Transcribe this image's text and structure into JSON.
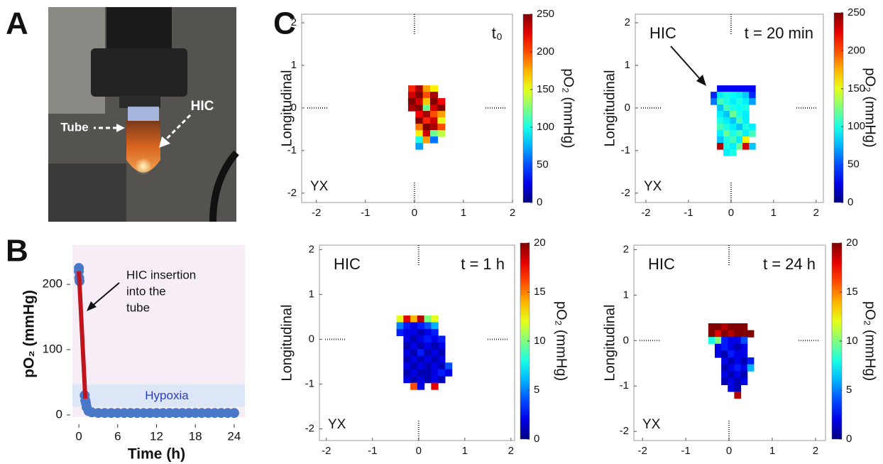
{
  "panel_labels": [
    "A",
    "B",
    "C"
  ],
  "photo": {
    "labels": [
      "Tube",
      "HIC"
    ]
  },
  "chart_data": [
    {
      "type": "line",
      "xlabel": "Time (h)",
      "ylabel": "pO₂ (mmHg)",
      "annotations": [
        "HIC insertion",
        "into the",
        "tube",
        "Hypoxia"
      ],
      "xlim": [
        -1,
        25
      ],
      "ylim": [
        -12,
        260
      ],
      "xticks": [
        0,
        6,
        12,
        18,
        24
      ],
      "yticks": [
        0,
        100,
        200
      ],
      "series": [
        {
          "mode": "markers",
          "color": "#4a78c9",
          "x": [
            0,
            0,
            0.05,
            0.1,
            0.9,
            1.0,
            1.1,
            1.2,
            1.5,
            2,
            3,
            4,
            5,
            6,
            7,
            8,
            9,
            10,
            11,
            12,
            13,
            14,
            15,
            16,
            17,
            18,
            19,
            20,
            21,
            22,
            23,
            24
          ],
          "values": [
            225,
            220,
            210,
            205,
            30,
            22,
            18,
            12,
            6,
            4,
            3,
            3,
            3,
            3,
            3,
            3,
            3,
            3,
            3,
            3,
            3,
            3,
            3,
            3,
            3,
            3,
            3,
            3,
            3,
            3,
            3,
            3
          ]
        },
        {
          "mode": "line",
          "color": "#c0141c",
          "x": [
            0,
            1
          ],
          "values": [
            220,
            25
          ]
        }
      ]
    },
    {
      "type": "heatmap",
      "ylabel": "Longitudinal",
      "colorbar_label": "pO₂ (mmHg)",
      "annotations": [
        "YX",
        "t₀"
      ],
      "xlim": [
        -2.3,
        2.0
      ],
      "ylim": [
        -2.22,
        2.2
      ],
      "xticks": [
        -2,
        -1,
        0,
        1,
        2
      ],
      "yticks": [
        -2,
        -1,
        0,
        1,
        2
      ],
      "clim": [
        0,
        250
      ],
      "cticks": [
        0,
        50,
        100,
        150,
        200,
        250
      ],
      "x": [
        -0.05,
        0.1,
        0.25,
        0.4,
        0.55
      ],
      "y": [
        0.45,
        0.3,
        0.15,
        0,
        -0.15,
        -0.3,
        -0.45,
        -0.6,
        -0.75,
        -0.9
      ],
      "z": [
        [
          210,
          240,
          180,
          160,
          null
        ],
        [
          230,
          250,
          200,
          240,
          null
        ],
        [
          250,
          230,
          170,
          250,
          220
        ],
        [
          240,
          250,
          120,
          230,
          250
        ],
        [
          null,
          220,
          240,
          200,
          180
        ],
        [
          null,
          250,
          210,
          230,
          150
        ],
        [
          null,
          190,
          250,
          240,
          200
        ],
        [
          null,
          160,
          230,
          120,
          140
        ],
        [
          null,
          100,
          180,
          60,
          null
        ],
        [
          null,
          70,
          null,
          null,
          null
        ]
      ]
    },
    {
      "type": "heatmap",
      "ylabel": "Longitudinal",
      "colorbar_label": "pO₂ (mmHg)",
      "annotations": [
        "YX",
        "t = 20 min",
        "HIC"
      ],
      "xlim": [
        -2.25,
        2.17
      ],
      "ylim": [
        -2.22,
        2.2
      ],
      "xticks": [
        -2,
        -1,
        0,
        1,
        2
      ],
      "yticks": [
        -2,
        -1,
        0,
        1,
        2
      ],
      "clim": [
        0,
        250
      ],
      "cticks": [
        0,
        50,
        100,
        150,
        200,
        250
      ],
      "x": [
        -0.4,
        -0.25,
        -0.1,
        0.05,
        0.2,
        0.35,
        0.5
      ],
      "y": [
        0.45,
        0.3,
        0.15,
        0,
        -0.15,
        -0.3,
        -0.45,
        -0.6,
        -0.75,
        -0.9,
        -1.05
      ],
      "z": [
        [
          null,
          30,
          30,
          30,
          30,
          30,
          30
        ],
        [
          40,
          90,
          100,
          95,
          90,
          80,
          40
        ],
        [
          60,
          110,
          100,
          90,
          100,
          90,
          70
        ],
        [
          null,
          80,
          110,
          100,
          95,
          100,
          null
        ],
        [
          null,
          90,
          80,
          120,
          100,
          90,
          null
        ],
        [
          null,
          100,
          90,
          80,
          110,
          90,
          null
        ],
        [
          null,
          110,
          100,
          90,
          80,
          100,
          90
        ],
        [
          null,
          90,
          120,
          100,
          110,
          90,
          110
        ],
        [
          null,
          80,
          100,
          110,
          90,
          160,
          null
        ],
        [
          null,
          240,
          100,
          90,
          120,
          230,
          80
        ],
        [
          null,
          null,
          90,
          100,
          null,
          null,
          null
        ]
      ]
    },
    {
      "type": "heatmap",
      "ylabel": "Longitudinal",
      "colorbar_label": "pO₂ (mmHg)",
      "annotations": [
        "YX",
        "t = 1 h",
        "HIC"
      ],
      "xlim": [
        -2.15,
        2.08
      ],
      "ylim": [
        -2.26,
        2.1
      ],
      "xticks": [
        -2,
        -1,
        0,
        1,
        2
      ],
      "yticks": [
        -2,
        -1,
        0,
        1,
        2
      ],
      "clim": [
        0,
        20
      ],
      "cticks": [
        0,
        5,
        10,
        15,
        20
      ],
      "x": [
        -0.55,
        -0.4,
        -0.25,
        -0.1,
        0.05,
        0.2,
        0.35,
        0.5,
        0.65
      ],
      "y": [
        0.45,
        0.3,
        0.15,
        0,
        -0.15,
        -0.3,
        -0.45,
        -0.6,
        -0.75,
        -0.9,
        -1.05
      ],
      "z": [
        [
          null,
          12,
          18,
          14,
          19,
          10,
          12,
          null,
          null
        ],
        [
          null,
          5,
          3,
          2,
          3,
          4,
          6,
          null,
          null
        ],
        [
          null,
          3,
          2,
          2,
          1,
          2,
          3,
          null,
          null
        ],
        [
          null,
          null,
          2,
          1,
          2,
          3,
          2,
          3,
          null
        ],
        [
          null,
          null,
          1,
          2,
          1,
          2,
          1,
          2,
          null
        ],
        [
          null,
          null,
          2,
          1,
          3,
          1,
          2,
          1,
          null
        ],
        [
          null,
          null,
          1,
          2,
          1,
          2,
          1,
          2,
          null
        ],
        [
          null,
          null,
          2,
          1,
          2,
          1,
          2,
          1,
          4
        ],
        [
          null,
          null,
          1,
          2,
          1,
          1,
          2,
          3,
          2
        ],
        [
          null,
          null,
          2,
          1,
          2,
          1,
          2,
          1,
          null
        ],
        [
          null,
          null,
          null,
          16,
          2,
          null,
          18,
          null,
          null
        ]
      ]
    },
    {
      "type": "heatmap",
      "ylabel": "Longitudinal",
      "colorbar_label": "pO₂ (mmHg)",
      "annotations": [
        "YX",
        "t = 24 h",
        "HIC"
      ],
      "xlim": [
        -2.2,
        2.23
      ],
      "ylim": [
        -2.2,
        2.1
      ],
      "xticks": [
        -2,
        -1,
        0,
        1,
        2
      ],
      "yticks": [
        -2,
        -1,
        0,
        1,
        2
      ],
      "clim": [
        0,
        20
      ],
      "cticks": [
        0,
        5,
        10,
        15,
        20
      ],
      "x": [
        -0.4,
        -0.25,
        -0.1,
        0.05,
        0.2,
        0.35,
        0.5
      ],
      "y": [
        0.3,
        0.15,
        0,
        -0.15,
        -0.3,
        -0.45,
        -0.6,
        -0.75,
        -0.9,
        -1.05,
        -1.2
      ],
      "z": [
        [
          20,
          20,
          19,
          20,
          20,
          20,
          null
        ],
        [
          20,
          18,
          20,
          19,
          20,
          20,
          20
        ],
        [
          8,
          10,
          3,
          2,
          2,
          4,
          null
        ],
        [
          null,
          2,
          3,
          2,
          1,
          2,
          null
        ],
        [
          null,
          2,
          1,
          3,
          2,
          2,
          null
        ],
        [
          null,
          null,
          2,
          1,
          2,
          1,
          3
        ],
        [
          null,
          null,
          1,
          2,
          3,
          2,
          6
        ],
        [
          null,
          null,
          2,
          1,
          2,
          1,
          null
        ],
        [
          null,
          null,
          1,
          2,
          1,
          2,
          null
        ],
        [
          null,
          null,
          null,
          2,
          1,
          null,
          null
        ],
        [
          null,
          null,
          null,
          null,
          19,
          null,
          null
        ]
      ]
    }
  ]
}
